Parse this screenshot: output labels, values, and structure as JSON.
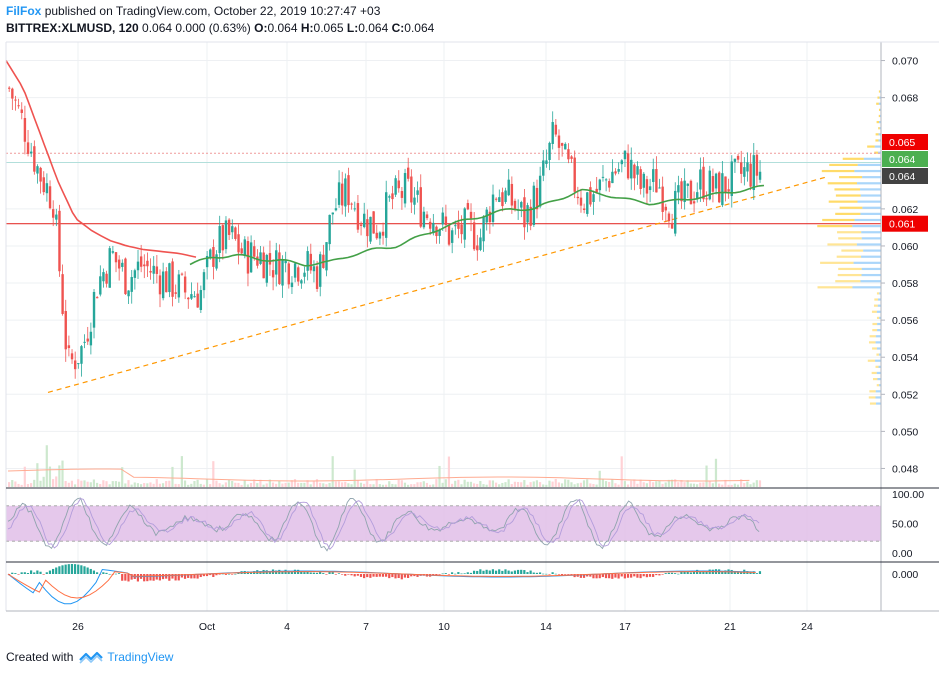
{
  "header": {
    "author": "FilFox",
    "published": "published on TradingView.com, October 22, 2019 10:27:47 +03",
    "symbol": "BITTREX:XLMUSD, 120",
    "last": "0.064",
    "change": "0.000 (0.63%)",
    "o_label": "O:",
    "o_value": "0.064",
    "h_label": "H:",
    "h_value": "0.065",
    "l_label": "L:",
    "l_value": "0.064",
    "c_label": "C:",
    "c_value": "0.064"
  },
  "footer": {
    "created_with": "Created with",
    "brand": "TradingView"
  },
  "colors": {
    "up": "#26a69a",
    "down": "#ef5350",
    "ma_red": "#ef5350",
    "ma_green": "#43a047",
    "trend": "#ff9800",
    "support": "#e53935",
    "rsi_fill": "#e1bee7",
    "grid": "#eef0f3"
  },
  "chart_data": [
    {
      "type": "candlestick",
      "panel": "price",
      "ylim": [
        0.047,
        0.071
      ],
      "x_ticks": [
        "26",
        "Oct",
        "4",
        "7",
        "10",
        "14",
        "17",
        "21",
        "24"
      ],
      "y_ticks": [
        "0.070",
        "0.068",
        "0.062",
        "0.060",
        "0.058",
        "0.056",
        "0.054",
        "0.052",
        "0.050",
        "0.048"
      ],
      "price_badges": [
        {
          "label": "0.065",
          "value": 0.065,
          "color": "#ef0000"
        },
        {
          "label": "0.064",
          "value": 0.06425,
          "color": "#4caf50"
        },
        {
          "label": "0.064",
          "value": 0.0635,
          "color": "#424242"
        },
        {
          "label": "0.061",
          "value": 0.0612,
          "color": "#ef0000"
        }
      ],
      "support_level": 0.0612,
      "high_level": 0.065,
      "last_level": 0.0645,
      "trendline": [
        {
          "x": 0.0,
          "y": 0.0521
        },
        {
          "x": 1.0,
          "y": 0.0637
        }
      ],
      "series": [
        {
          "name": "close",
          "values": [
            0.0685,
            0.0665,
            0.064,
            0.0625,
            0.0535,
            0.0545,
            0.058,
            0.0595,
            0.0582,
            0.059,
            0.0585,
            0.058,
            0.0575,
            0.0575,
            0.06,
            0.0605,
            0.0595,
            0.0595,
            0.059,
            0.059,
            0.059,
            0.0585,
            0.062,
            0.063,
            0.0615,
            0.061,
            0.0625,
            0.063,
            0.062,
            0.0615,
            0.0605,
            0.061,
            0.0605,
            0.063,
            0.0625,
            0.0615,
            0.063,
            0.066,
            0.064,
            0.0625,
            0.063,
            0.064,
            0.0645,
            0.063,
            0.0635,
            0.062,
            0.0625,
            0.0635,
            0.063,
            0.0635,
            0.064,
            0.064
          ]
        },
        {
          "name": "ma_slow",
          "values": [
            0.07,
            0.0685,
            0.066,
            0.0635,
            0.0615,
            0.0608,
            0.0603,
            0.06,
            0.0598,
            0.0597,
            0.0596,
            0.0594
          ]
        },
        {
          "name": "ma_fast",
          "values": [
            0.059,
            0.0594,
            0.0595,
            0.0593,
            0.0592,
            0.059,
            0.0591,
            0.0595,
            0.0598,
            0.06,
            0.0605,
            0.061,
            0.0614,
            0.0617,
            0.062,
            0.062,
            0.0625,
            0.063,
            0.0628,
            0.0625,
            0.0623,
            0.0624,
            0.0626,
            0.0628,
            0.063,
            0.0632
          ]
        }
      ]
    },
    {
      "type": "line",
      "panel": "rsi",
      "ylim": [
        0,
        100
      ],
      "y_ticks": [
        "100.00",
        "50.00",
        "0.00"
      ],
      "band": [
        20,
        80
      ]
    },
    {
      "type": "bar",
      "panel": "macd",
      "y_ticks": [
        "0.000"
      ]
    }
  ]
}
